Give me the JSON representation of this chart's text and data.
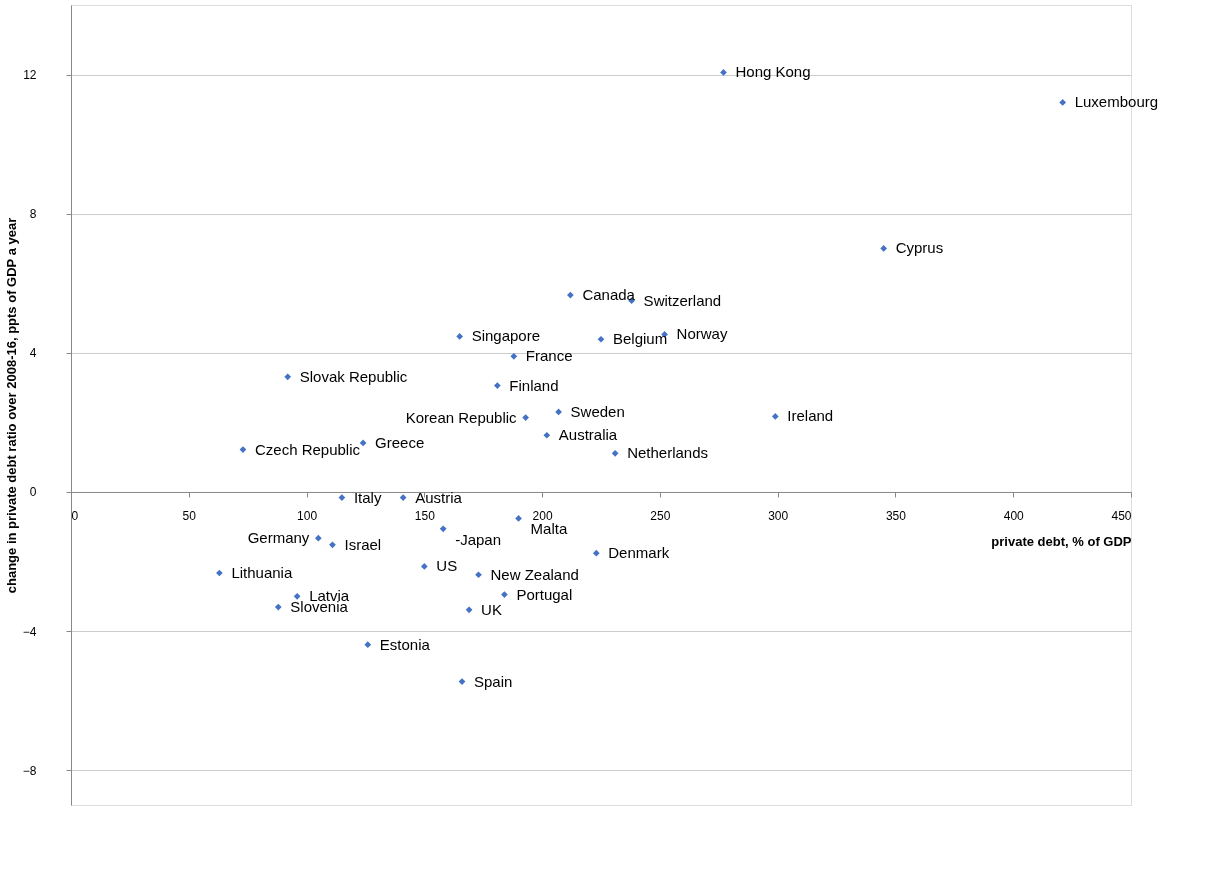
{
  "chart_data": {
    "type": "scatter",
    "xlabel": "private debt, % of GDP",
    "ylabel": "change in private debt ratio over 2008-16, ppts of GDP a year",
    "x": [
      277,
      421,
      345,
      212,
      238,
      165,
      225,
      252,
      188,
      92,
      181,
      193,
      207,
      299,
      202,
      73,
      124,
      231,
      115,
      141,
      158,
      190,
      105,
      111,
      223,
      63,
      150,
      173,
      96,
      184,
      88,
      169,
      126,
      166
    ],
    "values": [
      12.06,
      11.2,
      7.0,
      5.66,
      5.5,
      4.47,
      4.39,
      4.53,
      3.9,
      3.31,
      3.06,
      2.14,
      2.3,
      2.17,
      1.63,
      1.22,
      1.41,
      1.11,
      -0.16,
      -0.16,
      -1.06,
      -0.76,
      -1.33,
      -1.52,
      -1.76,
      -2.33,
      -2.14,
      -2.38,
      -3.0,
      -2.95,
      -3.31,
      -3.39,
      -4.39,
      -5.45
    ],
    "color": "#4472c4",
    "marker": "diamond",
    "grid": "y",
    "legend": false,
    "xlim": [
      0,
      450
    ],
    "xticks": [
      0,
      50,
      100,
      150,
      200,
      250,
      300,
      350,
      400,
      450
    ],
    "ylim": [
      -9,
      14
    ],
    "yticks": [
      -8,
      -4,
      0,
      4,
      8,
      12
    ],
    "annotations": [
      {
        "text": "Hong Kong",
        "x": 277,
        "y": 12.06
      },
      {
        "text": "Luxembourg",
        "x": 421,
        "y": 11.2
      },
      {
        "text": "Cyprus",
        "x": 345,
        "y": 7.0
      },
      {
        "text": "Canada",
        "x": 212,
        "y": 5.66
      },
      {
        "text": "Switzerland",
        "x": 238,
        "y": 5.5
      },
      {
        "text": "Singapore",
        "x": 165,
        "y": 4.47
      },
      {
        "text": "Belgium",
        "x": 225,
        "y": 4.39
      },
      {
        "text": "Norway",
        "x": 252,
        "y": 4.53
      },
      {
        "text": "France",
        "x": 188,
        "y": 3.9
      },
      {
        "text": "Slovak Republic",
        "x": 92,
        "y": 3.31
      },
      {
        "text": "Finland",
        "x": 181,
        "y": 3.06
      },
      {
        "text": "Korean Republic",
        "x": 193,
        "y": 2.14
      },
      {
        "text": "Sweden",
        "x": 207,
        "y": 2.3
      },
      {
        "text": "Ireland",
        "x": 299,
        "y": 2.17
      },
      {
        "text": "Australia",
        "x": 202,
        "y": 1.63
      },
      {
        "text": "Czech Republic",
        "x": 73,
        "y": 1.22
      },
      {
        "text": "Greece",
        "x": 124,
        "y": 1.41
      },
      {
        "text": "Netherlands",
        "x": 231,
        "y": 1.11
      },
      {
        "text": "Italy",
        "x": 115,
        "y": -0.16
      },
      {
        "text": "Austria",
        "x": 141,
        "y": -0.16
      },
      {
        "text": "-Japan",
        "x": 158,
        "y": -1.06
      },
      {
        "text": "Malta",
        "x": 190,
        "y": -0.76
      },
      {
        "text": "Germany",
        "x": 105,
        "y": -1.33
      },
      {
        "text": "Israel",
        "x": 111,
        "y": -1.52
      },
      {
        "text": "Denmark",
        "x": 223,
        "y": -1.76
      },
      {
        "text": "Lithuania",
        "x": 63,
        "y": -2.33
      },
      {
        "text": "US",
        "x": 150,
        "y": -2.14
      },
      {
        "text": "New Zealand",
        "x": 173,
        "y": -2.38
      },
      {
        "text": "Latvia",
        "x": 96,
        "y": -3.0
      },
      {
        "text": "Portugal",
        "x": 184,
        "y": -2.95
      },
      {
        "text": "Slovenia",
        "x": 88,
        "y": -3.31
      },
      {
        "text": "UK",
        "x": 169,
        "y": -3.39
      },
      {
        "text": "Estonia",
        "x": 126,
        "y": -4.39
      },
      {
        "text": "Spain",
        "x": 166,
        "y": -5.45
      }
    ]
  }
}
